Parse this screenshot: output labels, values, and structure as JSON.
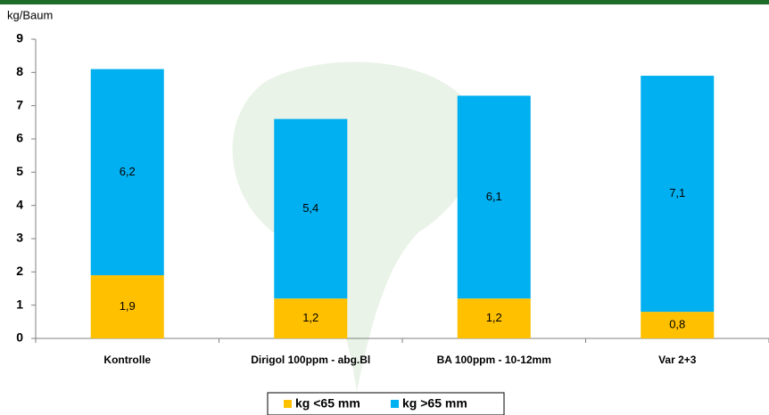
{
  "chart_data": {
    "type": "stacked_bar",
    "y_label": "kg/Baum",
    "categories": [
      "Kontrolle",
      "Dirigol 100ppm - abg.Bl",
      "BA 100ppm - 10-12mm",
      "Var 2+3"
    ],
    "series": [
      {
        "name": "kg <65 mm",
        "color": "#ffc000",
        "values": [
          1.9,
          1.2,
          1.2,
          0.8
        ],
        "value_labels": [
          "1,9",
          "1,2",
          "1,2",
          "0,8"
        ]
      },
      {
        "name": "kg >65 mm",
        "color": "#00b0f0",
        "values": [
          6.2,
          5.4,
          6.1,
          7.1
        ],
        "value_labels": [
          "6,2",
          "5,4",
          "6,1",
          "7,1"
        ]
      }
    ],
    "ylim": [
      0,
      9
    ],
    "yticks": [
      0,
      1,
      2,
      3,
      4,
      5,
      6,
      7,
      8,
      9
    ],
    "legend": "bottom"
  }
}
